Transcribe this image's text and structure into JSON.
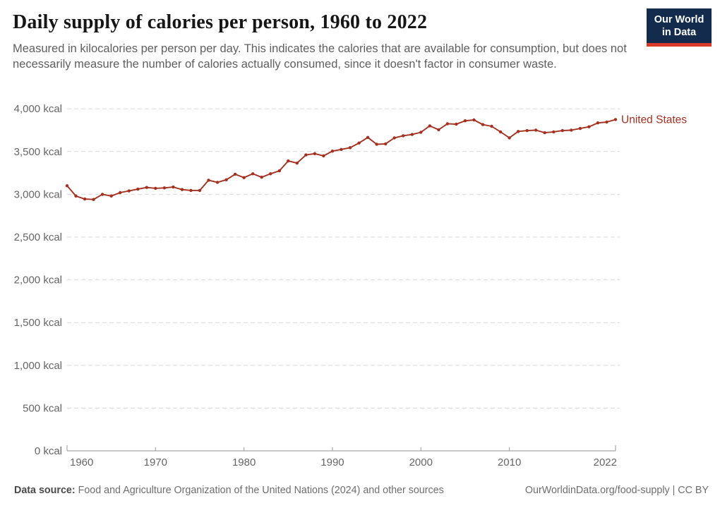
{
  "header": {
    "title": "Daily supply of calories per person, 1960 to 2022",
    "subtitle": "Measured in kilocalories per person per day. This indicates the calories that are available for consumption, but does not necessarily measure the number of calories actually consumed, since it doesn't factor in consumer waste.",
    "logo": {
      "line1": "Our World",
      "line2": "in Data"
    }
  },
  "chart_data": {
    "type": "line",
    "title": "Daily supply of calories per person, 1960 to 2022",
    "xlabel": "",
    "ylabel": "kcal",
    "xlim": [
      1960,
      2022
    ],
    "ylim": [
      0,
      4000
    ],
    "grid": "horizontal-dashed",
    "legend_position": "end-of-line-label",
    "x_ticks": [
      {
        "value": 1960,
        "label": "1960"
      },
      {
        "value": 1970,
        "label": "1970"
      },
      {
        "value": 1980,
        "label": "1980"
      },
      {
        "value": 1990,
        "label": "1990"
      },
      {
        "value": 2000,
        "label": "2000"
      },
      {
        "value": 2010,
        "label": "2010"
      },
      {
        "value": 2022,
        "label": "2022"
      }
    ],
    "y_ticks": [
      {
        "value": 0,
        "label": "0 kcal"
      },
      {
        "value": 500,
        "label": "500 kcal"
      },
      {
        "value": 1000,
        "label": "1,000 kcal"
      },
      {
        "value": 1500,
        "label": "1,500 kcal"
      },
      {
        "value": 2000,
        "label": "2,000 kcal"
      },
      {
        "value": 2500,
        "label": "2,500 kcal"
      },
      {
        "value": 3000,
        "label": "3,000 kcal"
      },
      {
        "value": 3500,
        "label": "3,500 kcal"
      },
      {
        "value": 4000,
        "label": "4,000 kcal"
      }
    ],
    "series": [
      {
        "name": "United States",
        "color": "#a5301f",
        "x": [
          1960,
          1961,
          1962,
          1963,
          1964,
          1965,
          1966,
          1967,
          1968,
          1969,
          1970,
          1971,
          1972,
          1973,
          1974,
          1975,
          1976,
          1977,
          1978,
          1979,
          1980,
          1981,
          1982,
          1983,
          1984,
          1985,
          1986,
          1987,
          1988,
          1989,
          1990,
          1991,
          1992,
          1993,
          1994,
          1995,
          1996,
          1997,
          1998,
          1999,
          2000,
          2001,
          2002,
          2003,
          2004,
          2005,
          2006,
          2007,
          2008,
          2009,
          2010,
          2011,
          2012,
          2013,
          2014,
          2015,
          2016,
          2017,
          2018,
          2019,
          2020,
          2021,
          2022
        ],
        "values": [
          3100,
          2980,
          2945,
          2940,
          3000,
          2980,
          3020,
          3040,
          3060,
          3080,
          3070,
          3075,
          3085,
          3055,
          3045,
          3045,
          3165,
          3140,
          3170,
          3235,
          3195,
          3240,
          3200,
          3240,
          3275,
          3390,
          3365,
          3460,
          3475,
          3450,
          3505,
          3525,
          3545,
          3600,
          3665,
          3585,
          3590,
          3660,
          3685,
          3700,
          3725,
          3800,
          3755,
          3825,
          3820,
          3860,
          3870,
          3815,
          3795,
          3730,
          3660,
          3735,
          3745,
          3750,
          3720,
          3730,
          3745,
          3750,
          3770,
          3790,
          3835,
          3845,
          3875
        ]
      }
    ]
  },
  "footer": {
    "source_label": "Data source:",
    "source_text": "Food and Agriculture Organization of the United Nations (2024) and other sources",
    "attribution": "OurWorldinData.org/food-supply | CC BY"
  },
  "colors": {
    "line": "#a5301f",
    "gridline": "#d9d9d9",
    "axis": "#a8a8a8",
    "tick_text": "#666666",
    "logo_bg": "#132c4e",
    "logo_bar": "#d93a2a"
  }
}
